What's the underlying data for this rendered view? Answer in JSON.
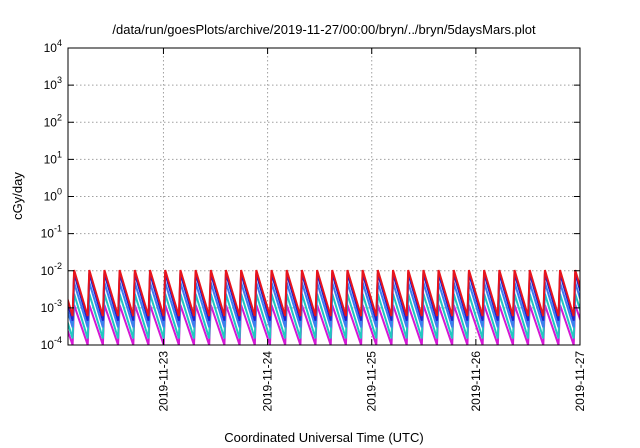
{
  "chart_data": {
    "type": "line",
    "title": "/data/run/goesPlots/archive/2019-11-27/00:00/bryn/../bryn/5daysMars.plot",
    "xlabel": "Coordinated Universal Time (UTC)",
    "ylabel": "cGy/day",
    "x_axis": {
      "type": "date",
      "range": [
        "2019-11-22T02:00",
        "2019-11-27T00:00"
      ],
      "ticks": [
        "2019-11-23",
        "2019-11-24",
        "2019-11-25",
        "2019-11-26",
        "2019-11-27"
      ]
    },
    "y_axis": {
      "scale": "log",
      "range": [
        0.0001,
        10000
      ],
      "ticks": [
        {
          "value": 0.0001,
          "base": "10",
          "exp": "-4"
        },
        {
          "value": 0.001,
          "base": "10",
          "exp": "-3"
        },
        {
          "value": 0.01,
          "base": "10",
          "exp": "-2"
        },
        {
          "value": 0.1,
          "base": "10",
          "exp": "-1"
        },
        {
          "value": 1,
          "base": "10",
          "exp": "0"
        },
        {
          "value": 10,
          "base": "10",
          "exp": "1"
        },
        {
          "value": 100,
          "base": "10",
          "exp": "2"
        },
        {
          "value": 1000,
          "base": "10",
          "exp": "3"
        },
        {
          "value": 10000,
          "base": "10",
          "exp": "4"
        }
      ]
    },
    "grid": true,
    "legend": "none",
    "series_pattern": "sawtooth",
    "sawtooth_period_hours": 3.5,
    "series": [
      {
        "color": "#e8141c",
        "peak": 0.0105,
        "trough": 0.0006
      },
      {
        "color": "#2020d0",
        "peak": 0.0085,
        "trough": 0.00045
      },
      {
        "color": "#3a7ff0",
        "peak": 0.0048,
        "trough": 0.0003
      },
      {
        "color": "#20c8c0",
        "peak": 0.0024,
        "trough": 0.00015
      },
      {
        "color": "#d418d4",
        "peak": 0.0012,
        "trough": 0.0001
      }
    ]
  }
}
